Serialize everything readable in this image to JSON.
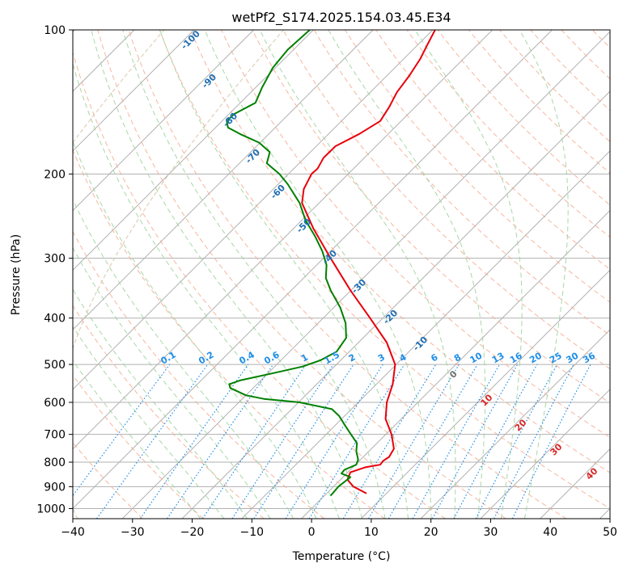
{
  "chart_data": {
    "type": "line",
    "title": "wetPf2_S174.2025.154.03.45.E34",
    "xlabel": "Temperature (°C)",
    "ylabel": "Pressure (hPa)",
    "xlim": [
      -40,
      50
    ],
    "ylim": [
      1050,
      100
    ],
    "y_scale": "log",
    "grid": true,
    "x_ticks": [
      -40,
      -30,
      -20,
      -10,
      0,
      10,
      20,
      30,
      40,
      50
    ],
    "y_ticks": [
      1000,
      900,
      800,
      700,
      600,
      500,
      400,
      300,
      200,
      100
    ],
    "series": [
      {
        "role": "temperature",
        "color": "#e8000b",
        "points": [
          [
            930,
            9.2
          ],
          [
            900,
            7.0
          ],
          [
            870,
            6.0
          ],
          [
            840,
            6.5
          ],
          [
            820,
            9.0
          ],
          [
            810,
            11.5
          ],
          [
            795,
            12.0
          ],
          [
            780,
            13.0
          ],
          [
            750,
            13.8
          ],
          [
            700,
            13.4
          ],
          [
            650,
            12.4
          ],
          [
            600,
            12.6
          ],
          [
            550,
            13.6
          ],
          [
            500,
            14.0
          ],
          [
            450,
            12.6
          ],
          [
            400,
            9.8
          ],
          [
            350,
            6.5
          ],
          [
            300,
            3.2
          ],
          [
            260,
            0.3
          ],
          [
            230,
            -1.6
          ],
          [
            215,
            -1.3
          ],
          [
            200,
            0.0
          ],
          [
            195,
            1.0
          ],
          [
            185,
            2.0
          ],
          [
            175,
            4.0
          ],
          [
            165,
            8.0
          ],
          [
            155,
            11.5
          ],
          [
            145,
            13.0
          ],
          [
            135,
            14.3
          ],
          [
            125,
            16.3
          ],
          [
            115,
            18.2
          ],
          [
            108,
            19.3
          ],
          [
            100,
            20.7
          ]
        ]
      },
      {
        "role": "dewpoint",
        "color": "#008000",
        "points": [
          [
            940,
            3.2
          ],
          [
            900,
            4.5
          ],
          [
            860,
            6.5
          ],
          [
            845,
            5.0
          ],
          [
            830,
            5.5
          ],
          [
            810,
            7.5
          ],
          [
            790,
            7.8
          ],
          [
            760,
            7.5
          ],
          [
            730,
            7.6
          ],
          [
            700,
            6.6
          ],
          [
            670,
            5.6
          ],
          [
            640,
            4.6
          ],
          [
            620,
            3.4
          ],
          [
            600,
            -2.0
          ],
          [
            590,
            -8.0
          ],
          [
            580,
            -11.0
          ],
          [
            560,
            -13.6
          ],
          [
            550,
            -13.8
          ],
          [
            540,
            -12.0
          ],
          [
            520,
            -6.0
          ],
          [
            505,
            -1.5
          ],
          [
            490,
            1.5
          ],
          [
            470,
            4.2
          ],
          [
            440,
            5.8
          ],
          [
            410,
            5.7
          ],
          [
            380,
            4.8
          ],
          [
            350,
            3.2
          ],
          [
            330,
            2.4
          ],
          [
            310,
            2.5
          ],
          [
            290,
            1.8
          ],
          [
            270,
            0.6
          ],
          [
            250,
            -1.0
          ],
          [
            230,
            -2.0
          ],
          [
            210,
            -4.0
          ],
          [
            200,
            -5.4
          ],
          [
            190,
            -7.5
          ],
          [
            180,
            -7.0
          ],
          [
            172,
            -8.8
          ],
          [
            165,
            -12.0
          ],
          [
            160,
            -14.0
          ],
          [
            155,
            -14.2
          ],
          [
            150,
            -13.0
          ],
          [
            142,
            -9.4
          ],
          [
            132,
            -8.3
          ],
          [
            120,
            -6.5
          ],
          [
            110,
            -4.0
          ],
          [
            100,
            -0.3
          ]
        ]
      }
    ],
    "isobar_labels_shown_on_axis": [
      1000,
      900,
      800,
      700,
      600,
      500,
      400,
      300,
      200,
      100
    ],
    "mixing_ratio_labels": [
      "0.1",
      "0.2",
      "0.4",
      "0.6",
      "1",
      "1.5",
      "2",
      "3",
      "4",
      "6",
      "8",
      "10",
      "13",
      "16",
      "20",
      "25",
      "30",
      "36"
    ],
    "mixing_ratio_values": [
      0.1,
      0.2,
      0.4,
      0.6,
      1,
      1.5,
      2,
      3,
      4,
      6,
      8,
      10,
      13,
      16,
      20,
      25,
      30,
      36
    ],
    "moist_adiabat_labels": [
      "-100",
      "-90",
      "-80",
      "-70",
      "-60",
      "-50",
      "-40",
      "-30",
      "-20",
      "-10"
    ],
    "dry_adiabat_labels": [
      "0",
      "10",
      "20",
      "30",
      "40"
    ],
    "colors": {
      "isotherm": "#b0b0b0",
      "isobar": "#b0b0b0",
      "dry_adiabat": "#f5a98c",
      "moist_adiabat": "#9fd39f",
      "mixing_ratio": "#1f8ee8",
      "pseudo_lines": "#d7c4a8"
    }
  }
}
